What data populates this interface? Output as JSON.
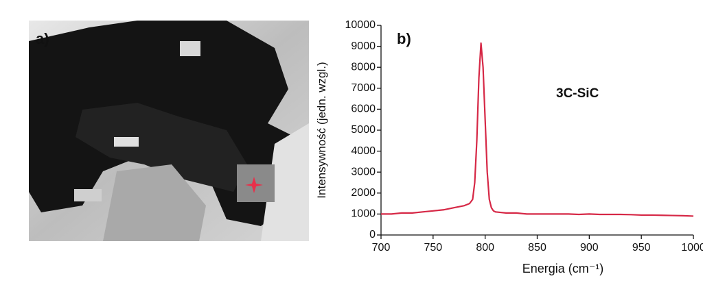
{
  "photo": {
    "panel_label": "a)"
  },
  "chart_data": {
    "type": "line",
    "panel_label": "b)",
    "annotation": "3C-SiC",
    "x_label": "Energia (cm⁻¹)",
    "y_label": "Intensywność (jedn. wzgl.)",
    "x": [
      700,
      710,
      720,
      730,
      740,
      750,
      760,
      770,
      775,
      780,
      785,
      788,
      790,
      792,
      794,
      796,
      798,
      800,
      802,
      804,
      806,
      808,
      810,
      820,
      830,
      840,
      850,
      860,
      870,
      880,
      890,
      900,
      910,
      920,
      930,
      940,
      950,
      960,
      970,
      980,
      990,
      1000
    ],
    "series": [
      {
        "name": null,
        "color": "#d62846",
        "values": [
          1000,
          1000,
          1050,
          1050,
          1100,
          1150,
          1200,
          1300,
          1350,
          1400,
          1500,
          1700,
          2500,
          4500,
          7500,
          9150,
          8000,
          5500,
          3000,
          1700,
          1300,
          1150,
          1100,
          1050,
          1050,
          1000,
          1000,
          1000,
          1000,
          1000,
          980,
          1000,
          980,
          980,
          980,
          970,
          950,
          950,
          940,
          930,
          920,
          900
        ]
      }
    ],
    "xlim": [
      700,
      1000
    ],
    "xticks": [
      700,
      750,
      800,
      850,
      900,
      950,
      1000
    ],
    "ylim": [
      0,
      10000
    ],
    "yticks": [
      0,
      1000,
      2000,
      3000,
      4000,
      5000,
      6000,
      7000,
      8000,
      9000,
      10000
    ]
  }
}
